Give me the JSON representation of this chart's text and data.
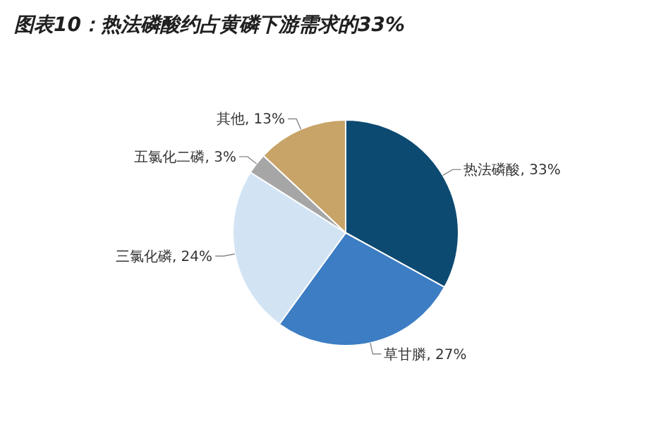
{
  "chart_data": {
    "type": "pie",
    "title": "图表10：热法磷酸约占黄磷下游需求的33%",
    "categories": [
      "热法磷酸",
      "草甘膦",
      "三氯化磷",
      "五氯化二磷",
      "其他"
    ],
    "values": [
      33,
      27,
      24,
      3,
      13
    ],
    "colors": [
      "#0d4a72",
      "#3c7dc4",
      "#d2e4f4",
      "#a6a6a6",
      "#c8a468"
    ],
    "value_labels": [
      ", 33%",
      ", 27%",
      ", 24%",
      ", 3%",
      ", 13%"
    ]
  }
}
